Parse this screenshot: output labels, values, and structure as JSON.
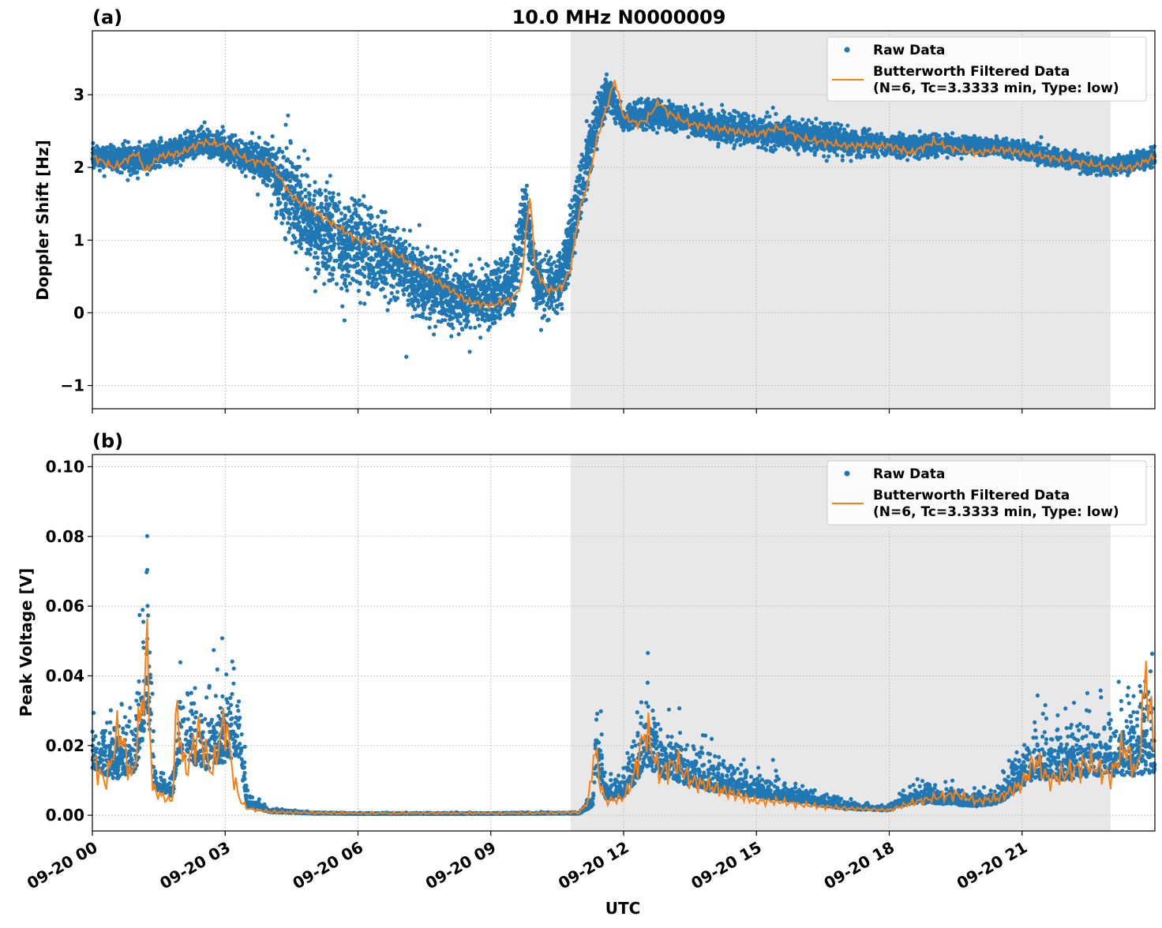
{
  "figure": {
    "title": "10.0 MHz N0000009",
    "xlabel": "UTC",
    "x_ticks": [
      "09-20 00",
      "09-20 03",
      "09-20 06",
      "09-20 09",
      "09-20 12",
      "09-20 15",
      "09-20 18",
      "09-20 21"
    ],
    "legend": {
      "raw": "Raw Data",
      "filtered_line1": "Butterworth Filtered Data",
      "filtered_line2": "(N=6, Tc=3.3333 min, Type: low)"
    },
    "colors": {
      "raw": "#1f77b4",
      "filtered": "#ff7f0e",
      "shade": "#e8e8e8",
      "grid": "#b0b0b0"
    }
  },
  "chart_data": [
    {
      "type": "scatter",
      "panel": "(a)",
      "ylabel": "Doppler Shift [Hz]",
      "xlim": [
        "09-20 00:00",
        "09-20 24:00"
      ],
      "ylim": [
        -1.32,
        3.88
      ],
      "y_ticks": [
        "−1",
        "0",
        "1",
        "2",
        "3"
      ],
      "y_tick_values": [
        -1,
        0,
        1,
        2,
        3
      ],
      "shaded_span": [
        "09-20 10:48",
        "09-20 23:00"
      ],
      "series": [
        {
          "name": "Raw Data",
          "approx_center_hours": [
            0,
            1,
            2,
            2.5,
            3,
            3.5,
            4,
            4.5,
            5,
            5.5,
            6,
            6.5,
            7,
            7.5,
            8,
            8.5,
            9,
            9.5,
            9.8,
            10,
            10.5,
            10.8,
            11.2,
            11.6,
            12,
            12.5,
            13,
            14,
            15,
            16,
            17,
            18,
            19,
            20,
            21,
            22,
            23,
            24
          ],
          "approx_center_values": [
            2.15,
            2.1,
            2.25,
            2.35,
            2.25,
            2.15,
            2.0,
            1.6,
            1.2,
            1.0,
            0.9,
            0.8,
            0.6,
            0.4,
            0.25,
            0.15,
            0.2,
            0.4,
            1.4,
            0.4,
            0.3,
            1.0,
            2.2,
            3.05,
            2.65,
            2.75,
            2.7,
            2.55,
            2.5,
            2.45,
            2.35,
            2.3,
            2.3,
            2.3,
            2.25,
            2.1,
            2.0,
            2.15
          ],
          "approx_spread": [
            0.15,
            0.2,
            0.2,
            0.2,
            0.2,
            0.25,
            0.4,
            0.7,
            0.7,
            0.7,
            0.7,
            0.6,
            0.55,
            0.5,
            0.45,
            0.45,
            0.45,
            0.45,
            0.5,
            0.45,
            0.45,
            0.5,
            0.45,
            0.25,
            0.15,
            0.2,
            0.2,
            0.2,
            0.2,
            0.2,
            0.2,
            0.15,
            0.15,
            0.12,
            0.12,
            0.12,
            0.12,
            0.15
          ]
        },
        {
          "name": "Butterworth Filtered Data (N=6, Tc=3.3333 min, Type: low)",
          "hours": [
            0,
            0.5,
            1,
            1.2,
            1.5,
            2,
            2.5,
            3,
            3.5,
            4,
            4.2,
            4.5,
            5,
            5.5,
            6,
            6.5,
            7,
            7.5,
            8,
            8.5,
            9,
            9.5,
            9.7,
            9.8,
            9.9,
            10,
            10.3,
            10.6,
            10.8,
            11,
            11.2,
            11.4,
            11.6,
            11.8,
            12,
            12.3,
            12.5,
            12.8,
            13,
            13.5,
            14,
            14.5,
            15,
            15.5,
            16,
            16.5,
            17,
            17.5,
            18,
            18.5,
            19,
            19.5,
            20,
            20.5,
            21,
            21.5,
            22,
            22.5,
            23,
            23.5,
            24
          ],
          "values": [
            2.15,
            2.0,
            2.2,
            1.95,
            2.15,
            2.2,
            2.35,
            2.3,
            2.1,
            2.05,
            1.9,
            1.6,
            1.4,
            1.2,
            1.0,
            0.95,
            0.75,
            0.55,
            0.35,
            0.15,
            0.1,
            0.2,
            0.4,
            1.2,
            1.6,
            0.6,
            0.3,
            0.35,
            0.6,
            1.4,
            1.8,
            2.4,
            2.8,
            3.2,
            2.7,
            2.6,
            2.65,
            2.9,
            2.75,
            2.6,
            2.55,
            2.5,
            2.45,
            2.55,
            2.4,
            2.35,
            2.3,
            2.3,
            2.3,
            2.2,
            2.35,
            2.25,
            2.2,
            2.25,
            2.2,
            2.15,
            2.1,
            2.05,
            2.0,
            2.0,
            2.15
          ]
        }
      ],
      "legend_position": "upper right",
      "grid": true
    },
    {
      "type": "scatter",
      "panel": "(b)",
      "ylabel": "Peak Voltage [V]",
      "xlim": [
        "09-20 00:00",
        "09-20 24:00"
      ],
      "ylim": [
        -0.0045,
        0.1035
      ],
      "y_ticks": [
        "0.00",
        "0.02",
        "0.04",
        "0.06",
        "0.08",
        "0.10"
      ],
      "y_tick_values": [
        0.0,
        0.02,
        0.04,
        0.06,
        0.08,
        0.1
      ],
      "shaded_span": [
        "09-20 10:48",
        "09-20 23:00"
      ],
      "series": [
        {
          "name": "Raw Data",
          "approx_center_hours": [
            0,
            0.5,
            1,
            1.25,
            1.4,
            1.8,
            2,
            2.5,
            3,
            3.3,
            3.5,
            4,
            5,
            6,
            9,
            11,
            11.3,
            11.4,
            11.6,
            12,
            12.5,
            13,
            13.5,
            14,
            15,
            16,
            17,
            18,
            18.5,
            19,
            20,
            20.5,
            21,
            21.5,
            22,
            22.5,
            23,
            23.5,
            24
          ],
          "approx_center_values": [
            0.015,
            0.012,
            0.015,
            0.035,
            0.008,
            0.006,
            0.02,
            0.015,
            0.018,
            0.02,
            0.003,
            0.001,
            0.0005,
            0.0004,
            0.0004,
            0.0005,
            0.003,
            0.015,
            0.005,
            0.006,
            0.016,
            0.012,
            0.01,
            0.008,
            0.006,
            0.004,
            0.002,
            0.0015,
            0.004,
            0.004,
            0.003,
            0.004,
            0.01,
            0.012,
            0.012,
            0.013,
            0.013,
            0.014,
            0.015
          ],
          "approx_spread": [
            0.01,
            0.012,
            0.015,
            0.04,
            0.004,
            0.004,
            0.02,
            0.015,
            0.018,
            0.02,
            0.003,
            0.0008,
            0.0003,
            0.0002,
            0.0002,
            0.0003,
            0.003,
            0.02,
            0.004,
            0.006,
            0.018,
            0.012,
            0.01,
            0.008,
            0.005,
            0.003,
            0.0015,
            0.001,
            0.004,
            0.004,
            0.003,
            0.004,
            0.01,
            0.012,
            0.012,
            0.013,
            0.013,
            0.018,
            0.025
          ]
        },
        {
          "name": "Butterworth Filtered Data (N=6, Tc=3.3333 min, Type: low)",
          "hours": [
            0,
            0.3,
            0.6,
            0.9,
            1.1,
            1.25,
            1.35,
            1.5,
            1.8,
            1.9,
            2.1,
            2.4,
            2.7,
            3.0,
            3.2,
            3.35,
            3.5,
            4,
            5,
            6,
            8,
            10,
            11,
            11.2,
            11.35,
            11.45,
            11.6,
            12,
            12.2,
            12.5,
            12.8,
            13.2,
            13.5,
            14,
            14.5,
            15,
            15.5,
            16,
            17,
            18,
            18.5,
            19,
            19.5,
            20,
            20.5,
            21,
            21.3,
            21.6,
            22,
            22.5,
            23,
            23.3,
            23.6,
            23.8,
            24
          ],
          "values": [
            0.016,
            0.009,
            0.025,
            0.01,
            0.03,
            0.046,
            0.008,
            0.006,
            0.004,
            0.03,
            0.012,
            0.024,
            0.012,
            0.028,
            0.01,
            0.004,
            0.002,
            0.001,
            0.0006,
            0.0005,
            0.0005,
            0.0005,
            0.0008,
            0.004,
            0.02,
            0.01,
            0.004,
            0.005,
            0.01,
            0.025,
            0.012,
            0.015,
            0.01,
            0.008,
            0.006,
            0.004,
            0.004,
            0.003,
            0.002,
            0.0015,
            0.0035,
            0.005,
            0.006,
            0.004,
            0.005,
            0.009,
            0.016,
            0.01,
            0.012,
            0.015,
            0.011,
            0.02,
            0.012,
            0.04,
            0.018
          ]
        }
      ],
      "legend_position": "upper right",
      "grid": true
    }
  ]
}
